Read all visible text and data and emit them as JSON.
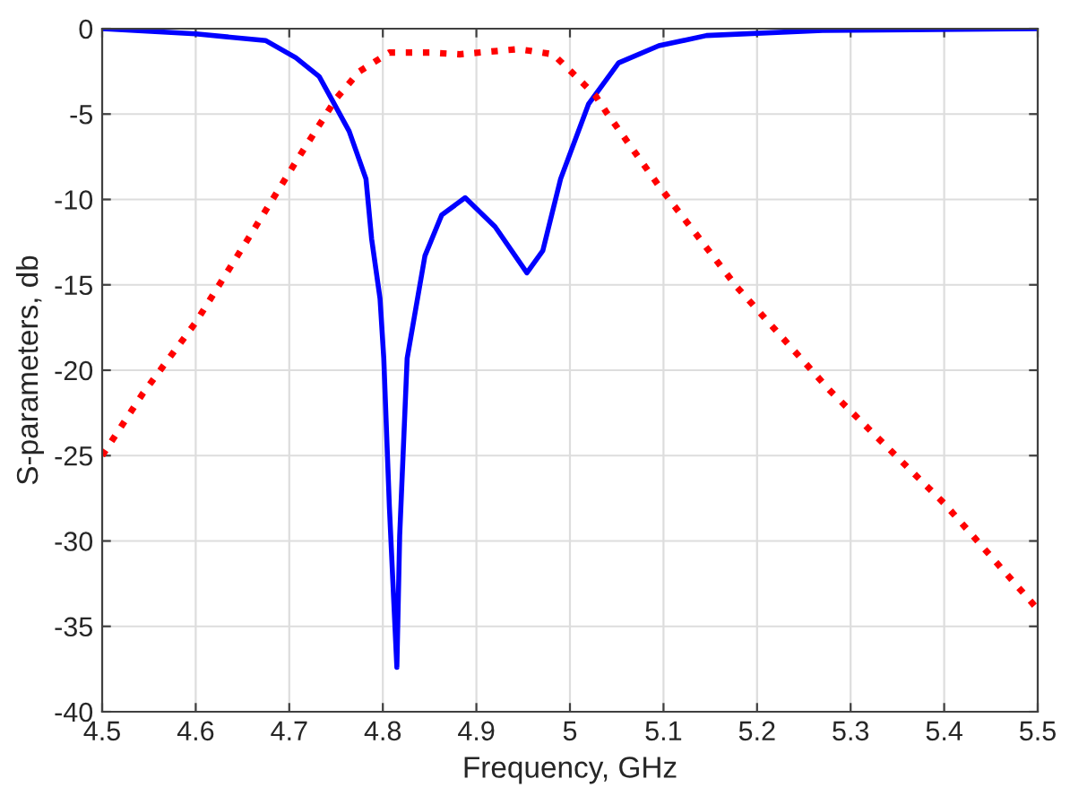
{
  "chart_data": {
    "type": "line",
    "xlabel": "Frequency, GHz",
    "ylabel": "S-parameters, db",
    "xlim": [
      4.5,
      5.5
    ],
    "ylim": [
      -40,
      0
    ],
    "xticks": [
      4.5,
      4.6,
      4.7,
      4.8,
      4.9,
      5,
      5.1,
      5.2,
      5.3,
      5.4,
      5.5
    ],
    "yticks": [
      -40,
      -35,
      -30,
      -25,
      -20,
      -15,
      -10,
      -5,
      0
    ],
    "grid": true,
    "legend": false,
    "series": [
      {
        "color": "#0000ff",
        "line_style": "solid",
        "x": [
          4.5,
          4.6,
          4.675,
          4.707,
          4.732,
          4.747,
          4.764,
          4.782,
          4.788,
          4.797,
          4.801,
          4.807,
          4.815,
          4.818,
          4.826,
          4.845,
          4.863,
          4.888,
          4.92,
          4.954,
          4.971,
          4.99,
          5.02,
          5.052,
          5.095,
          5.146,
          5.27,
          5.5
        ],
        "values": [
          0,
          -0.3,
          -0.7,
          -1.7,
          -2.8,
          -4.3,
          -6,
          -8.8,
          -12.3,
          -15.8,
          -19.3,
          -28,
          -37.4,
          -29.7,
          -19.3,
          -13.3,
          -10.9,
          -9.9,
          -11.6,
          -14.3,
          -13,
          -8.8,
          -4.4,
          -2.0,
          -1.0,
          -0.4,
          -0.1,
          0
        ]
      },
      {
        "color": "#ff0000",
        "line_style": "dotted",
        "x": [
          4.5,
          4.543,
          4.6,
          4.656,
          4.707,
          4.75,
          4.775,
          4.807,
          4.85,
          4.882,
          4.944,
          4.958,
          4.982,
          5.001,
          5.027,
          5.039,
          5.095,
          5.178,
          5.278,
          5.4,
          5.5
        ],
        "values": [
          -25,
          -21.4,
          -17.2,
          -12.3,
          -7.8,
          -4.1,
          -2.5,
          -1.4,
          -1.4,
          -1.5,
          -1.2,
          -1.3,
          -1.5,
          -2.5,
          -3.9,
          -4.9,
          -9.2,
          -15.1,
          -21.2,
          -27.8,
          -34
        ]
      }
    ]
  }
}
